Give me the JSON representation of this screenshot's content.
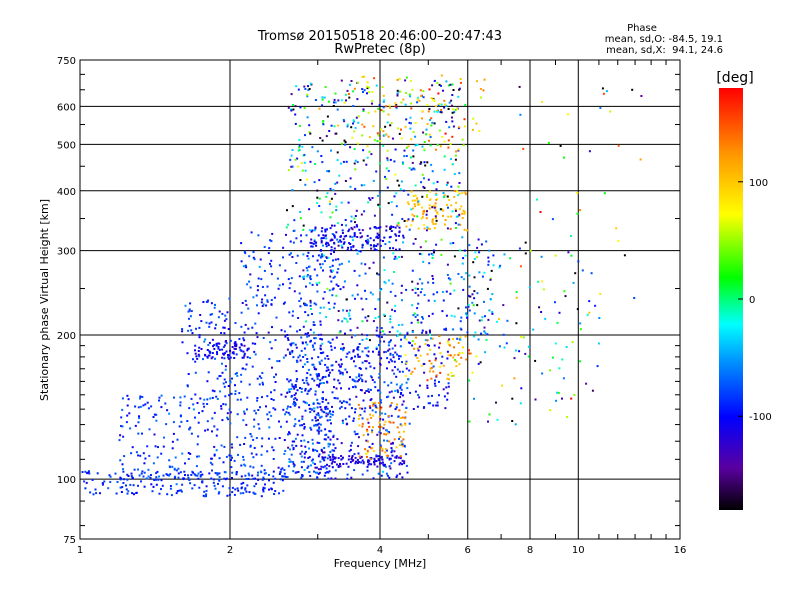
{
  "chart_data": {
    "type": "scatter",
    "title": "Tromsø 20150518 20:46:00–20:47:43",
    "subtitle": "RwPretec (8p)",
    "xlabel": "Frequency [MHz]",
    "ylabel": "Stationary phase Virtual Height [km]",
    "x_scale": "log",
    "y_scale": "log",
    "xlim": [
      1,
      16
    ],
    "ylim": [
      75,
      750
    ],
    "x_ticks": [
      1,
      2,
      4,
      6,
      8,
      10,
      16
    ],
    "y_ticks": [
      75,
      100,
      200,
      300,
      400,
      500,
      600,
      750
    ],
    "grid": true,
    "phase_box": {
      "heading": "Phase",
      "line1": "mean, sd,O: -84.5, 19.1",
      "line2": "mean, sd,X:  94.1, 24.6"
    },
    "colorbar": {
      "label": "[deg]",
      "ticks": [
        100,
        0,
        -100
      ],
      "range": [
        -180,
        180
      ],
      "colormap": "rainbow"
    },
    "clusters": [
      {
        "fmin": 1.0,
        "fmax": 2.6,
        "hmin": 92,
        "hmax": 104,
        "phase": -95,
        "sd": 10,
        "n": 200
      },
      {
        "fmin": 1.2,
        "fmax": 3.2,
        "hmin": 100,
        "hmax": 150,
        "phase": -95,
        "sd": 15,
        "n": 380
      },
      {
        "fmin": 1.6,
        "fmax": 3.0,
        "hmin": 150,
        "hmax": 240,
        "phase": -95,
        "sd": 15,
        "n": 240
      },
      {
        "fmin": 1.7,
        "fmax": 2.2,
        "hmin": 178,
        "hmax": 195,
        "phase": -115,
        "sd": 8,
        "n": 70
      },
      {
        "fmin": 2.1,
        "fmax": 3.3,
        "hmin": 230,
        "hmax": 330,
        "phase": -95,
        "sd": 20,
        "n": 130
      },
      {
        "fmin": 2.6,
        "fmax": 4.6,
        "hmin": 100,
        "hmax": 195,
        "phase": -95,
        "sd": 25,
        "n": 420
      },
      {
        "fmin": 3.0,
        "fmax": 4.5,
        "hmin": 106,
        "hmax": 112,
        "phase": -125,
        "sd": 8,
        "n": 90
      },
      {
        "fmin": 3.6,
        "fmax": 4.5,
        "hmin": 110,
        "hmax": 145,
        "phase": 120,
        "sd": 20,
        "n": 80
      },
      {
        "fmin": 3.0,
        "fmax": 5.5,
        "hmin": 140,
        "hmax": 205,
        "phase": -110,
        "sd": 15,
        "n": 200
      },
      {
        "fmin": 4.5,
        "fmax": 6.2,
        "hmin": 160,
        "hmax": 200,
        "phase": 110,
        "sd": 30,
        "n": 70
      },
      {
        "fmin": 2.8,
        "fmax": 6.8,
        "hmin": 195,
        "hmax": 320,
        "phase": -80,
        "sd": 50,
        "n": 330
      },
      {
        "fmin": 2.9,
        "fmax": 4.5,
        "hmin": 300,
        "hmax": 340,
        "phase": -115,
        "sd": 8,
        "n": 120
      },
      {
        "fmin": 4.5,
        "fmax": 6.0,
        "hmin": 330,
        "hmax": 400,
        "phase": 105,
        "sd": 15,
        "n": 90
      },
      {
        "fmin": 2.6,
        "fmax": 5.8,
        "hmin": 330,
        "hmax": 680,
        "phase": -70,
        "sd": 80,
        "n": 430
      },
      {
        "fmin": 3.5,
        "fmax": 6.5,
        "hmin": 480,
        "hmax": 700,
        "phase": 100,
        "sd": 40,
        "n": 110
      },
      {
        "fmin": 6.0,
        "fmax": 11.0,
        "hmin": 130,
        "hmax": 300,
        "phase": -50,
        "sd": 100,
        "n": 110
      },
      {
        "fmin": 7.0,
        "fmax": 14.0,
        "hmin": 200,
        "hmax": 680,
        "phase": 0,
        "sd": 120,
        "n": 40
      }
    ]
  }
}
